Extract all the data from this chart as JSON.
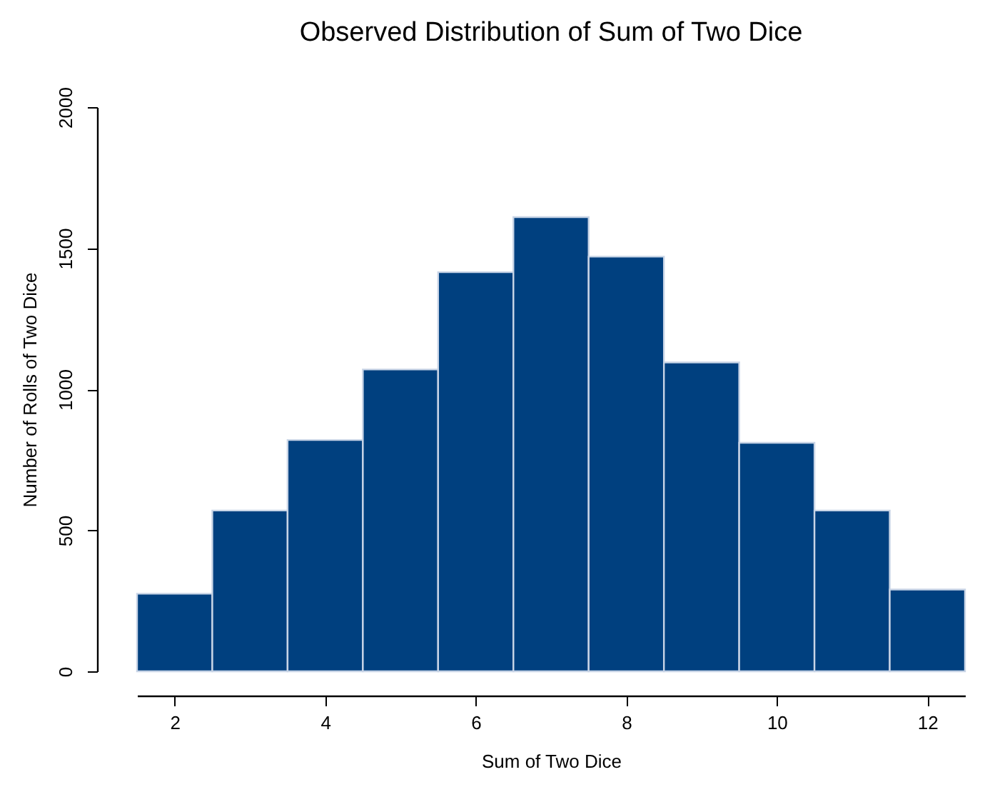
{
  "chart_data": {
    "type": "histogram",
    "title": "Observed Distribution of Sum of Two Dice",
    "xlabel": "Sum of Two Dice",
    "ylabel": "Number of Rolls of Two Dice",
    "bins": [
      1.5,
      2.5,
      3.5,
      4.5,
      5.5,
      6.5,
      7.5,
      8.5,
      9.5,
      10.5,
      11.5,
      12.5
    ],
    "values": [
      275,
      570,
      820,
      1070,
      1415,
      1610,
      1470,
      1095,
      810,
      570,
      290
    ],
    "color": "#00407f",
    "xlim": [
      1.5,
      12.5
    ],
    "xticks": [
      2,
      4,
      6,
      8,
      10,
      12
    ],
    "ylim": [
      0,
      2000
    ],
    "yticks": [
      0,
      500,
      1000,
      1500,
      2000
    ]
  }
}
